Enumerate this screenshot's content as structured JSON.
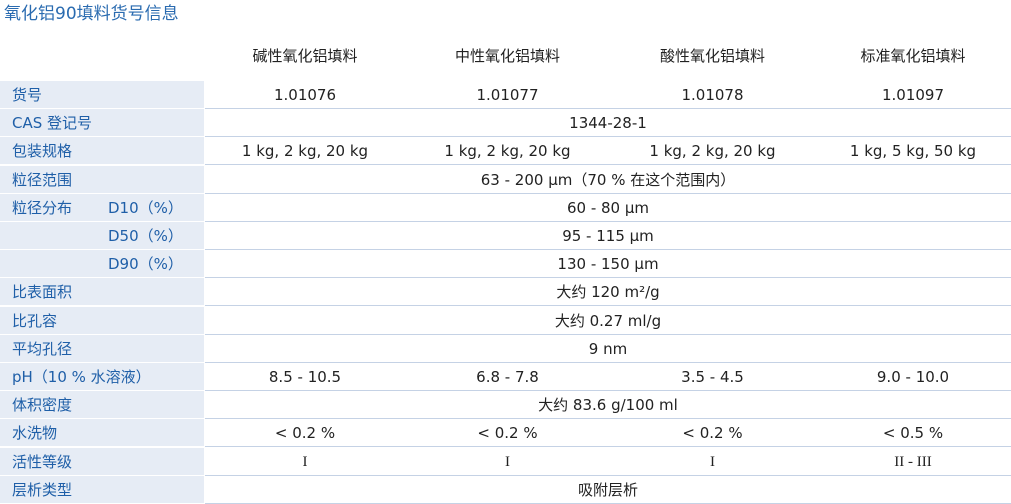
{
  "header": {
    "title": "氧化铝90填料货号信息"
  },
  "table": {
    "columns": [
      "碱性氧化铝填料",
      "中性氧化铝填料",
      "酸性氧化铝填料",
      "标准氧化铝填料"
    ],
    "rows": [
      {
        "label": "货号",
        "cells": [
          "1.01076",
          "1.01077",
          "1.01078",
          "1.01097"
        ]
      },
      {
        "label": "CAS 登记号",
        "cells": [
          "1344-28-1"
        ]
      },
      {
        "label": "包装规格",
        "cells": [
          "1 kg, 2 kg, 20 kg",
          "1 kg, 2 kg, 20 kg",
          "1 kg, 2 kg, 20 kg",
          "1 kg, 5 kg, 50 kg"
        ]
      },
      {
        "label": "粒径范围",
        "cells": [
          "63 - 200 μm（70 % 在这个范围内）"
        ]
      },
      {
        "label": "粒径分布",
        "sublabel": "D10（%）",
        "cells": [
          "60 - 80 μm"
        ]
      },
      {
        "sublabel": "D50（%）",
        "cells": [
          "95 - 115 μm"
        ]
      },
      {
        "sublabel": "D90（%）",
        "cells": [
          "130 - 150 μm"
        ]
      },
      {
        "label": "比表面积",
        "cells": [
          "大约 120 m²/g"
        ]
      },
      {
        "label": "比孔容",
        "cells": [
          "大约 0.27 ml/g"
        ]
      },
      {
        "label": "平均孔径",
        "cells": [
          "9 nm"
        ]
      },
      {
        "label": "pH（10 % 水溶液）",
        "cells": [
          "8.5 - 10.5",
          "6.8 - 7.8",
          "3.5 - 4.5",
          "9.0 - 10.0"
        ]
      },
      {
        "label": "体积密度",
        "cells": [
          "大约 83.6 g/100 ml"
        ]
      },
      {
        "label": "水洗物",
        "cells": [
          "< 0.2 %",
          "< 0.2 %",
          "< 0.2 %",
          "< 0.5 %"
        ]
      },
      {
        "label": "活性等级",
        "cells": [
          "I",
          "I",
          "I",
          "II - III"
        ]
      },
      {
        "label": "层析类型",
        "cells": [
          "吸附层析"
        ]
      }
    ]
  }
}
